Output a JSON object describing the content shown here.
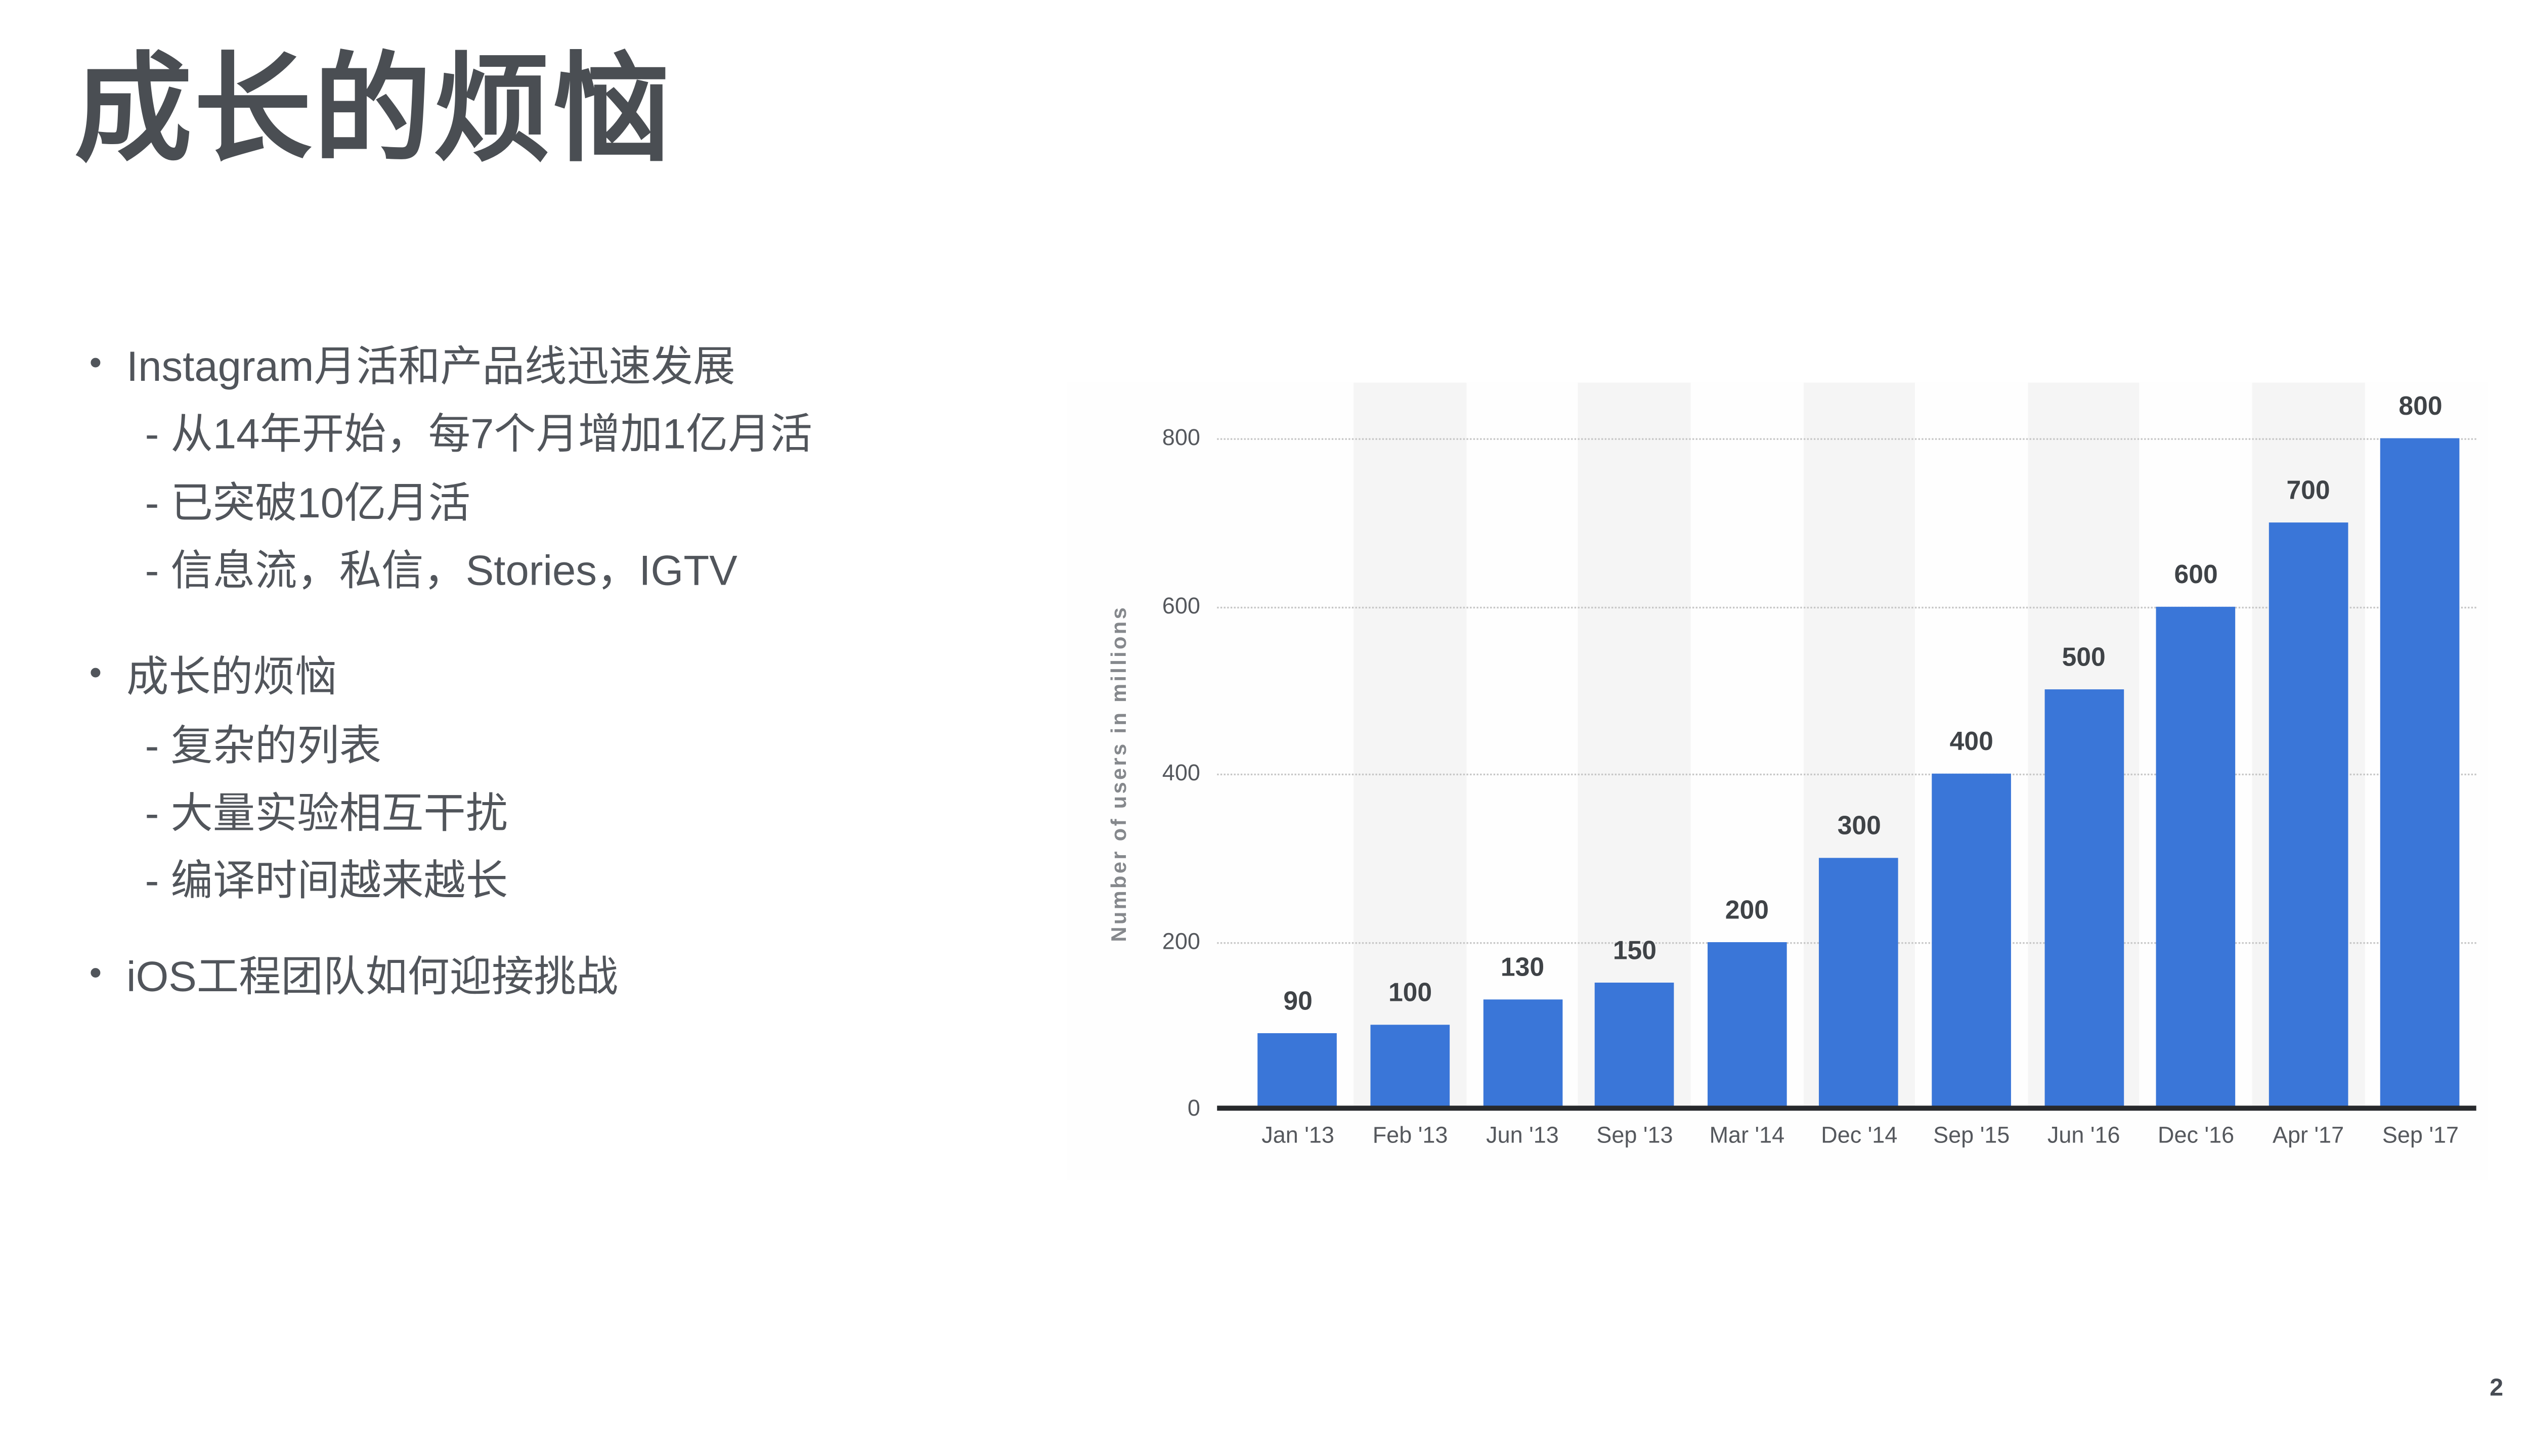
{
  "slide": {
    "title": "成长的烦恼",
    "page_number": "2",
    "bullet_groups": [
      {
        "marker": "•",
        "heading": "Instagram月活和产品线迅速发展",
        "items": [
          "- 从14年开始，每7个月增加1亿月活",
          "- 已突破10亿月活",
          "- 信息流，私信，Stories，IGTV"
        ]
      },
      {
        "marker": "•",
        "heading": "成长的烦恼",
        "items": [
          "- 复杂的列表",
          "- 大量实验相互干扰",
          "- 编译时间越来越长"
        ]
      },
      {
        "marker": "•",
        "heading": "iOS工程团队如何迎接挑战",
        "items": []
      }
    ]
  },
  "chart_data": {
    "type": "bar",
    "title": "",
    "categories": [
      "Jan '13",
      "Feb '13",
      "Jun '13",
      "Sep '13",
      "Mar '14",
      "Dec '14",
      "Sep '15",
      "Jun '16",
      "Dec '16",
      "Apr '17",
      "Sep '17"
    ],
    "values": [
      90,
      100,
      130,
      150,
      200,
      300,
      400,
      500,
      600,
      700,
      800
    ],
    "xlabel": "",
    "ylabel": "Number of users in millions",
    "ylim": [
      0,
      850
    ],
    "yticks": [
      0,
      200,
      400,
      600,
      800
    ],
    "grid": "horizontal-dotted",
    "legend": "none",
    "bar_color": "#3a76d8",
    "stripe_color": "#f5f5f5",
    "axis_color": "#27292c",
    "value_label_color": "#3f4347",
    "tick_label_color": "#55585d",
    "ytitle_color": "#85888c"
  }
}
